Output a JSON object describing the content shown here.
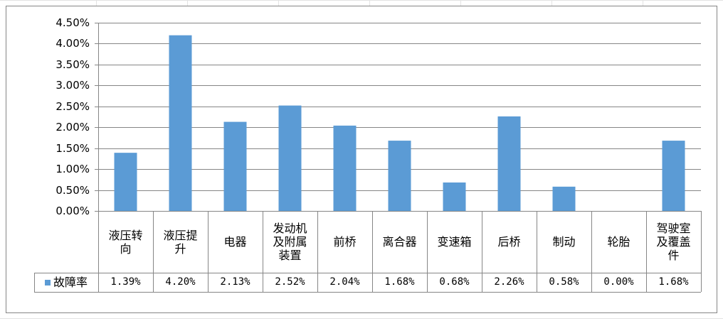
{
  "chart_data": {
    "type": "bar",
    "categories": [
      "液压转向",
      "液压提升",
      "电器",
      "发动机及附属装置",
      "前桥",
      "离合器",
      "变速箱",
      "后桥",
      "制动",
      "轮胎",
      "驾驶室及覆盖件"
    ],
    "series": [
      {
        "name": "故障率",
        "color": "#5b9bd5",
        "values": [
          1.39,
          4.2,
          2.13,
          2.52,
          2.04,
          1.68,
          0.68,
          2.26,
          0.58,
          0.0,
          1.68
        ],
        "value_labels": [
          "1.39%",
          "4.20%",
          "2.13%",
          "2.52%",
          "2.04%",
          "1.68%",
          "0.68%",
          "2.26%",
          "0.58%",
          "0.00%",
          "1.68%"
        ]
      }
    ],
    "ylim": [
      0,
      4.5
    ],
    "yticks": [
      {
        "value": 0,
        "label": "0.00%"
      },
      {
        "value": 0.5,
        "label": "0.50%"
      },
      {
        "value": 1,
        "label": "1.00%"
      },
      {
        "value": 1.5,
        "label": "1.50%"
      },
      {
        "value": 2,
        "label": "2.00%"
      },
      {
        "value": 2.5,
        "label": "2.50%"
      },
      {
        "value": 3,
        "label": "3.00%"
      },
      {
        "value": 3.5,
        "label": "3.50%"
      },
      {
        "value": 4,
        "label": "4.00%"
      },
      {
        "value": 4.5,
        "label": "4.50%"
      }
    ],
    "grid": true
  }
}
